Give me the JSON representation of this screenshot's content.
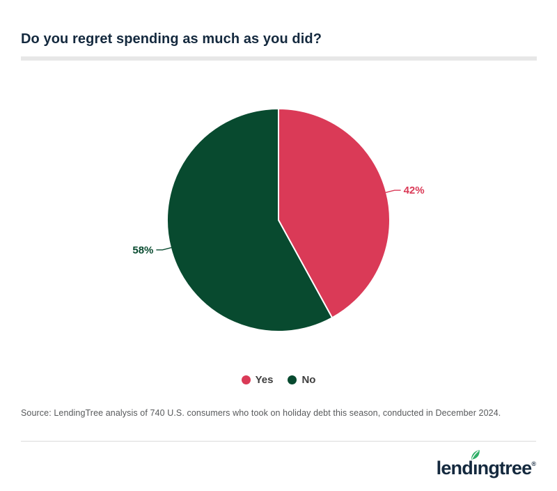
{
  "header": {
    "title": "Do you regret spending as much as you did?",
    "title_color": "#14293E",
    "underline_bar_color": "#E7E7E7"
  },
  "chart_data": {
    "type": "pie",
    "title": "Do you regret spending as much as you did?",
    "labels": [
      "Yes",
      "No"
    ],
    "values": [
      42,
      58
    ],
    "display_labels": [
      "42%",
      "58%"
    ],
    "colors": [
      "#DA3A57",
      "#084A2F"
    ],
    "start_angle_deg": 0,
    "direction": "clockwise",
    "legend_position": "bottom",
    "legend_text_color": "#3E3E3E"
  },
  "footer": {
    "source": "Source: LendingTree analysis of 740 U.S. consumers who took on holiday debt this season, conducted in December 2024.",
    "logo_text": "lendingtree",
    "logo_registered": "®",
    "logo_leaf_color": "#2EAE67",
    "logo_text_color": "#14293E"
  }
}
